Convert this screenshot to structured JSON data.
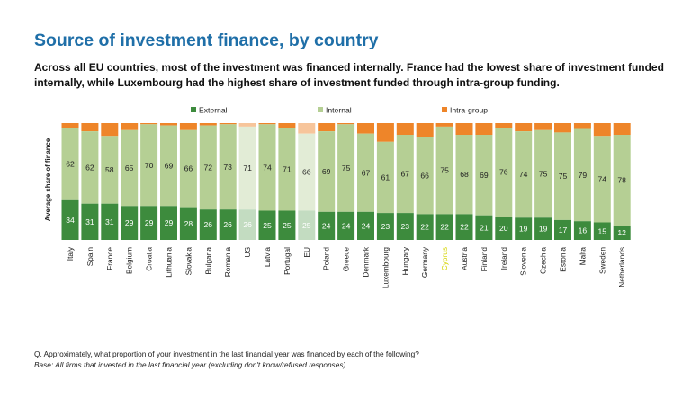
{
  "title": "Source of investment finance, by country",
  "subtitle": "Across all EU countries, most of the investment was financed internally. France had the lowest share of investment funded internally, while Luxembourg had the highest share of investment funded through intra-group funding.",
  "footnote": {
    "question": "Q. Approximately, what proportion of your investment in the last financial year was financed by each of the following?",
    "base": "Base: All firms that invested in the last financial year (excluding don't know/refused responses)."
  },
  "colors": {
    "external": "#3d8b3d",
    "internal": "#b5cf94",
    "intra_group": "#ee8529",
    "external_light": "#c3dcc1",
    "internal_light": "#e2ecd6",
    "intra_group_light": "#f7c59b",
    "highlight_label": "#d4d400"
  },
  "chart_data": {
    "type": "bar",
    "stacked": true,
    "normalized": true,
    "ylabel": "Average share of finance",
    "ylim": [
      0,
      100
    ],
    "legend_position": "top",
    "categories": [
      "Italy",
      "Spain",
      "France",
      "Belgium",
      "Croatia",
      "Lithuania",
      "Slovakia",
      "Bulgaria",
      "Romania",
      "US",
      "Latvia",
      "Portugal",
      "EU",
      "Poland",
      "Greece",
      "Denmark",
      "Luxembourg",
      "Hungary",
      "Germany",
      "Cyprus",
      "Austria",
      "Finland",
      "Ireland",
      "Slovenia",
      "Czechia",
      "Estonia",
      "Malta",
      "Sweden",
      "Netherlands"
    ],
    "highlighted_categories": [
      "Cyprus"
    ],
    "lighter_categories": [
      "US",
      "EU"
    ],
    "series": [
      {
        "name": "External",
        "values": [
          34,
          31,
          31,
          29,
          29,
          29,
          28,
          26,
          26,
          26,
          25,
          25,
          25,
          24,
          24,
          24,
          23,
          23,
          22,
          22,
          22,
          21,
          20,
          19,
          19,
          17,
          16,
          15,
          12
        ]
      },
      {
        "name": "Internal",
        "values": [
          62,
          62,
          58,
          65,
          70,
          69,
          66,
          72,
          73,
          71,
          74,
          71,
          66,
          69,
          75,
          67,
          61,
          67,
          66,
          75,
          68,
          69,
          76,
          74,
          75,
          75,
          79,
          74,
          78
        ]
      },
      {
        "name": "Intra-group",
        "values": [
          4,
          7,
          11,
          6,
          1,
          2,
          6,
          2,
          1,
          3,
          1,
          4,
          9,
          7,
          1,
          9,
          16,
          10,
          12,
          3,
          10,
          10,
          4,
          7,
          6,
          8,
          5,
          11,
          10
        ]
      }
    ]
  }
}
